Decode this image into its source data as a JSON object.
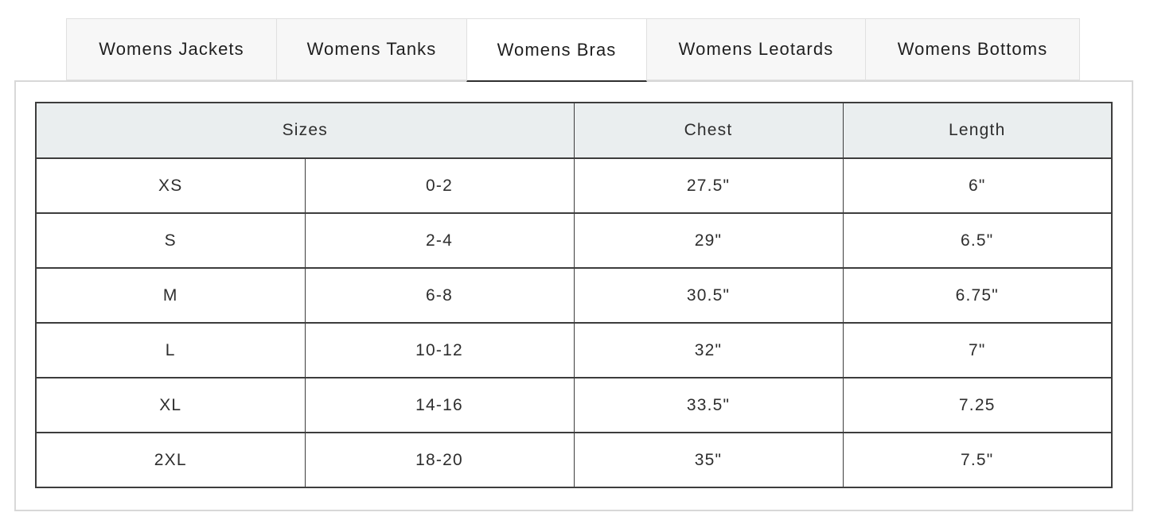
{
  "tabs": [
    {
      "label": "Womens Jackets",
      "active": false
    },
    {
      "label": "Womens Tanks",
      "active": false
    },
    {
      "label": "Womens Bras",
      "active": true
    },
    {
      "label": "Womens Leotards",
      "active": false
    },
    {
      "label": "Womens Bottoms",
      "active": false
    }
  ],
  "size_chart": {
    "headers": {
      "sizes": "Sizes",
      "chest": "Chest",
      "length": "Length"
    },
    "rows": [
      {
        "size": "XS",
        "range": "0-2",
        "chest": "27.5\"",
        "length": "6\""
      },
      {
        "size": "S",
        "range": "2-4",
        "chest": "29\"",
        "length": "6.5\""
      },
      {
        "size": "M",
        "range": "6-8",
        "chest": "30.5\"",
        "length": "6.75\""
      },
      {
        "size": "L",
        "range": "10-12",
        "chest": "32\"",
        "length": "7\""
      },
      {
        "size": "XL",
        "range": "14-16",
        "chest": "33.5\"",
        "length": "7.25"
      },
      {
        "size": "2XL",
        "range": "18-20",
        "chest": "35\"",
        "length": "7.5\""
      }
    ]
  },
  "colors": {
    "active_tab_underline": "#2f2f2f",
    "inactive_tab_bg": "#f7f7f7",
    "tab_border": "#e0e0e0",
    "panel_border": "#d8d8d8",
    "table_border": "#3d3d3d",
    "header_bg": "#eaeeef",
    "text": "#2e2e2e"
  }
}
